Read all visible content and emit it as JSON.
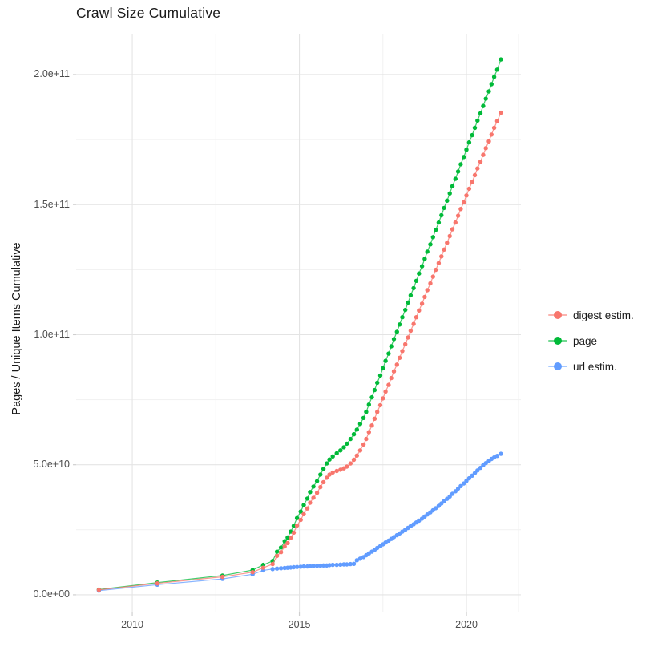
{
  "chart": {
    "title": "Crawl Size Cumulative",
    "y_axis_title": "Pages / Unique Items Cumulative"
  },
  "legend": {
    "items": [
      {
        "label": "digest estim.",
        "color": "#F8766D",
        "series": "digest estim."
      },
      {
        "label": "page",
        "color": "#00BA38",
        "series": "page"
      },
      {
        "label": "url estim.",
        "color": "#619CFF",
        "series": "url estim."
      }
    ]
  },
  "axes": {
    "x_ticks": [
      {
        "label": "2010",
        "value": 2010
      },
      {
        "label": "2015",
        "value": 2015
      },
      {
        "label": "2020",
        "value": 2020
      }
    ],
    "x_minor": [
      2012.5,
      2017.5
    ],
    "y_ticks": [
      {
        "label": "0.0e+00",
        "value": 0
      },
      {
        "label": "5.0e+10",
        "value": 50
      },
      {
        "label": "1.0e+11",
        "value": 100
      },
      {
        "label": "1.5e+11",
        "value": 150
      },
      {
        "label": "2.0e+11",
        "value": 200
      }
    ],
    "y_minor": [
      25,
      75,
      125,
      175
    ],
    "x_domain": [
      2008.32,
      2021.63
    ],
    "y_domain": [
      -6.8,
      215.7
    ]
  },
  "chart_data": {
    "type": "line",
    "title": "Crawl Size Cumulative",
    "xlabel": "",
    "ylabel": "Pages / Unique Items Cumulative",
    "y_unit_multiplier": 1000000000.0,
    "xlim": [
      2008.32,
      2021.63
    ],
    "ylim": [
      0,
      200000000000.0
    ],
    "grid": true,
    "legend_position": "right",
    "x": [
      2009,
      2010.75,
      2012.7,
      2013.6,
      2013.92,
      2014.2,
      2014.33,
      2014.45,
      2014.56,
      2014.65,
      2014.74,
      2014.83,
      2014.93,
      2015.04,
      2015.13,
      2015.24,
      2015.32,
      2015.42,
      2015.53,
      2015.63,
      2015.72,
      2015.82,
      2015.9,
      2016,
      2016.12,
      2016.23,
      2016.33,
      2016.42,
      2016.53,
      2016.63,
      2016.72,
      2016.82,
      2016.92,
      2017,
      2017.08,
      2017.17,
      2017.25,
      2017.33,
      2017.42,
      2017.5,
      2017.58,
      2017.67,
      2017.75,
      2017.83,
      2017.92,
      2018,
      2018.08,
      2018.17,
      2018.25,
      2018.33,
      2018.42,
      2018.5,
      2018.58,
      2018.67,
      2018.75,
      2018.83,
      2018.92,
      2019,
      2019.08,
      2019.17,
      2019.25,
      2019.33,
      2019.42,
      2019.5,
      2019.58,
      2019.67,
      2019.75,
      2019.83,
      2019.92,
      2020,
      2020.08,
      2020.17,
      2020.25,
      2020.33,
      2020.42,
      2020.5,
      2020.58,
      2020.67,
      2020.75,
      2020.83,
      2020.92,
      2021.03
    ],
    "series": [
      {
        "name": "digest estim.",
        "color": "#F8766D",
        "values": [
          1.9,
          4.4,
          6.9,
          8.7,
          10.4,
          11.8,
          15.0,
          16.4,
          18.6,
          19.9,
          21.9,
          23.9,
          26.6,
          28.8,
          31.0,
          33.2,
          35.4,
          37.3,
          39.2,
          41.4,
          43.3,
          45.0,
          46.2,
          47.0,
          47.6,
          48.1,
          48.6,
          49.3,
          50.5,
          51.9,
          53.5,
          55.5,
          57.8,
          59.9,
          62.5,
          65.1,
          67.7,
          70.3,
          72.9,
          75.5,
          78.1,
          80.7,
          83.3,
          85.9,
          88.5,
          91.1,
          93.7,
          96.3,
          98.9,
          101.5,
          104.1,
          106.7,
          109.3,
          111.9,
          114.5,
          117.1,
          119.7,
          122.3,
          124.9,
          127.5,
          130.1,
          132.7,
          135.3,
          137.9,
          140.5,
          143.1,
          145.7,
          148.3,
          150.9,
          153.5,
          156.1,
          158.7,
          161.3,
          163.9,
          166.5,
          169.1,
          171.7,
          174.3,
          176.9,
          179.5,
          182.1,
          185.3
        ]
      },
      {
        "name": "page",
        "color": "#00BA38",
        "values": [
          2.0,
          4.7,
          7.4,
          9.5,
          11.5,
          13.0,
          16.6,
          18.2,
          20.6,
          22.0,
          24.3,
          26.5,
          29.5,
          32.0,
          34.5,
          37.0,
          39.5,
          41.6,
          43.7,
          46.2,
          48.4,
          50.5,
          52.0,
          53.2,
          54.4,
          55.5,
          56.7,
          58.1,
          59.9,
          61.7,
          63.5,
          65.7,
          68.0,
          70.3,
          73.1,
          75.9,
          78.7,
          81.5,
          84.3,
          87.1,
          89.9,
          92.7,
          95.5,
          98.3,
          101.1,
          103.9,
          106.7,
          109.5,
          112.3,
          115.1,
          117.9,
          120.7,
          123.5,
          126.3,
          129.1,
          131.9,
          134.7,
          137.5,
          140.3,
          143.1,
          145.9,
          148.7,
          151.5,
          154.3,
          157.1,
          159.9,
          162.7,
          165.5,
          168.3,
          171.1,
          173.9,
          176.7,
          179.5,
          182.3,
          185.1,
          187.9,
          190.7,
          193.5,
          196.3,
          199.1,
          201.9,
          205.8
        ]
      },
      {
        "name": "url estim.",
        "color": "#619CFF",
        "values": [
          1.6,
          3.9,
          6.1,
          7.9,
          9.4,
          9.9,
          10.1,
          10.2,
          10.3,
          10.4,
          10.5,
          10.6,
          10.7,
          10.8,
          10.9,
          10.9,
          11.0,
          11.1,
          11.1,
          11.2,
          11.3,
          11.3,
          11.4,
          11.5,
          11.5,
          11.6,
          11.7,
          11.7,
          11.8,
          11.9,
          13.3,
          13.9,
          14.5,
          15.2,
          15.9,
          16.6,
          17.3,
          18.0,
          18.7,
          19.4,
          20.1,
          20.8,
          21.5,
          22.2,
          22.9,
          23.6,
          24.3,
          25.0,
          25.7,
          26.4,
          27.1,
          27.8,
          28.5,
          29.3,
          30.1,
          30.9,
          31.7,
          32.5,
          33.3,
          34.2,
          35.1,
          36.0,
          36.9,
          37.8,
          38.8,
          39.8,
          40.8,
          41.8,
          42.8,
          43.8,
          44.8,
          45.8,
          46.8,
          47.8,
          48.8,
          49.8,
          50.6,
          51.4,
          52.2,
          52.8,
          53.4,
          54.2
        ]
      }
    ]
  },
  "style": {
    "grid_major_color": "#e4e4e4",
    "grid_minor_color": "#f1f1f1",
    "tick_mark_color": "#cfcfcf",
    "text_color": "#1a1a1a",
    "tick_label_color": "#4d4d4d",
    "background_color": "#ffffff"
  }
}
